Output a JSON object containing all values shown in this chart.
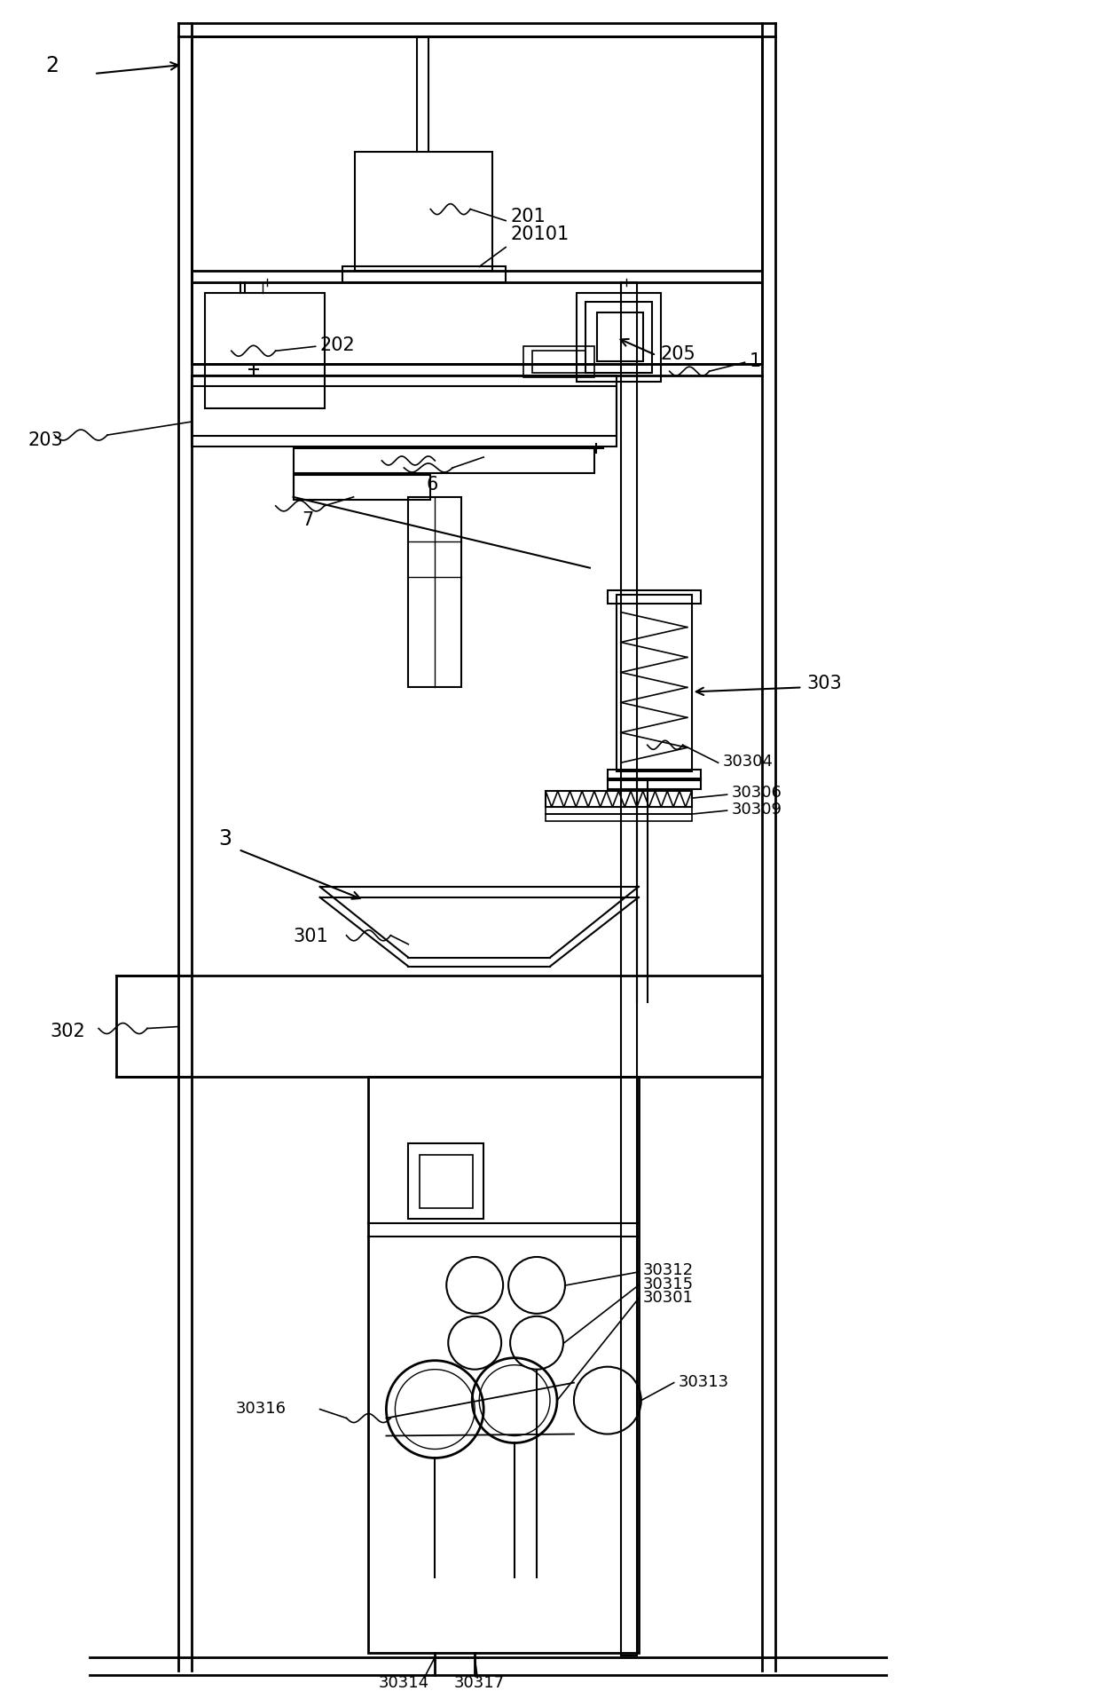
{
  "bg_color": "#ffffff",
  "line_color": "#000000",
  "fig_width": 12.4,
  "fig_height": 19.15
}
